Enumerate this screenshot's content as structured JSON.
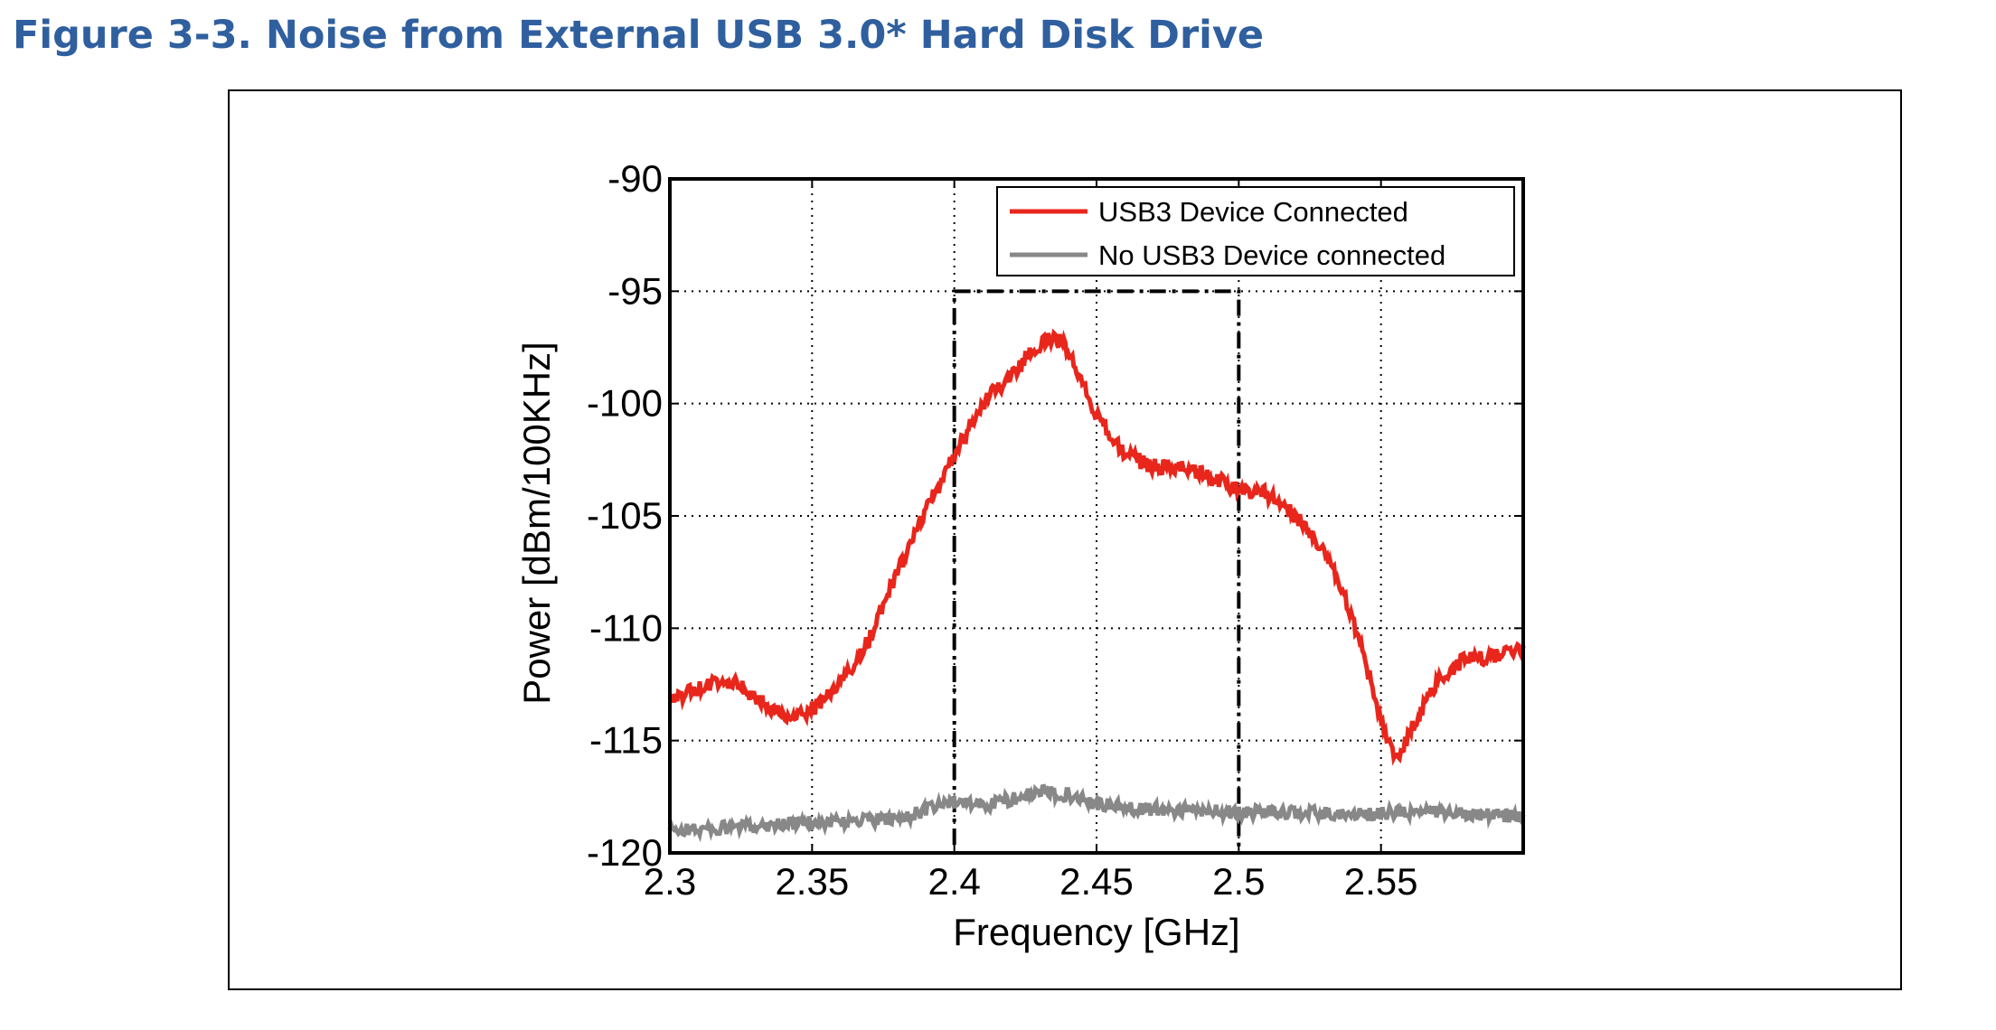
{
  "figure": {
    "title": "Figure 3-3. Noise from External USB 3.0* Hard Disk Drive"
  },
  "chart_data": {
    "type": "line",
    "xlabel": "Frequency [GHz]",
    "ylabel": "Power [dBm/100KHz]",
    "xlim": [
      2.3,
      2.6
    ],
    "ylim": [
      -120,
      -90
    ],
    "x_ticks": [
      2.3,
      2.35,
      2.4,
      2.45,
      2.5,
      2.55
    ],
    "x_tick_labels": [
      "2.3",
      "2.35",
      "2.4",
      "2.45",
      "2.5",
      "2.55"
    ],
    "y_ticks": [
      -90,
      -95,
      -100,
      -105,
      -110,
      -115,
      -120
    ],
    "y_tick_labels": [
      "-90",
      "-95",
      "-100",
      "-105",
      "-110",
      "-115",
      "-120"
    ],
    "grid": true,
    "legend_position": "top-right",
    "highlight_box": {
      "x": [
        2.4,
        2.5
      ],
      "y": [
        -120,
        -95
      ],
      "style": "dash-dot"
    },
    "series": [
      {
        "name": "USB3 Device Connected",
        "color": "#e8261c",
        "noise": 0.35,
        "x": [
          2.3,
          2.31,
          2.32,
          2.33,
          2.34,
          2.345,
          2.35,
          2.36,
          2.37,
          2.38,
          2.39,
          2.4,
          2.41,
          2.42,
          2.43,
          2.435,
          2.44,
          2.45,
          2.46,
          2.47,
          2.48,
          2.49,
          2.5,
          2.51,
          2.52,
          2.53,
          2.54,
          2.55,
          2.555,
          2.56,
          2.57,
          2.58,
          2.59,
          2.6
        ],
        "y": [
          -113.2,
          -112.7,
          -112.3,
          -113.0,
          -113.9,
          -114.0,
          -113.6,
          -112.5,
          -110.5,
          -107.5,
          -104.8,
          -102.3,
          -100.0,
          -98.7,
          -97.4,
          -97.0,
          -97.6,
          -100.5,
          -102.3,
          -102.8,
          -102.9,
          -103.3,
          -103.8,
          -104.0,
          -105.0,
          -106.5,
          -109.5,
          -114.0,
          -115.9,
          -114.7,
          -112.3,
          -111.3,
          -111.3,
          -111.0
        ]
      },
      {
        "name": "No USB3 Device connected",
        "color": "#888888",
        "noise": 0.3,
        "x": [
          2.3,
          2.32,
          2.34,
          2.36,
          2.38,
          2.39,
          2.4,
          2.41,
          2.42,
          2.43,
          2.44,
          2.45,
          2.46,
          2.48,
          2.5,
          2.52,
          2.54,
          2.56,
          2.58,
          2.6
        ],
        "y": [
          -119.0,
          -118.9,
          -118.7,
          -118.6,
          -118.5,
          -118.1,
          -117.7,
          -117.9,
          -117.6,
          -117.3,
          -117.4,
          -117.8,
          -118.0,
          -118.1,
          -118.2,
          -118.2,
          -118.3,
          -118.2,
          -118.2,
          -118.4
        ]
      }
    ]
  }
}
